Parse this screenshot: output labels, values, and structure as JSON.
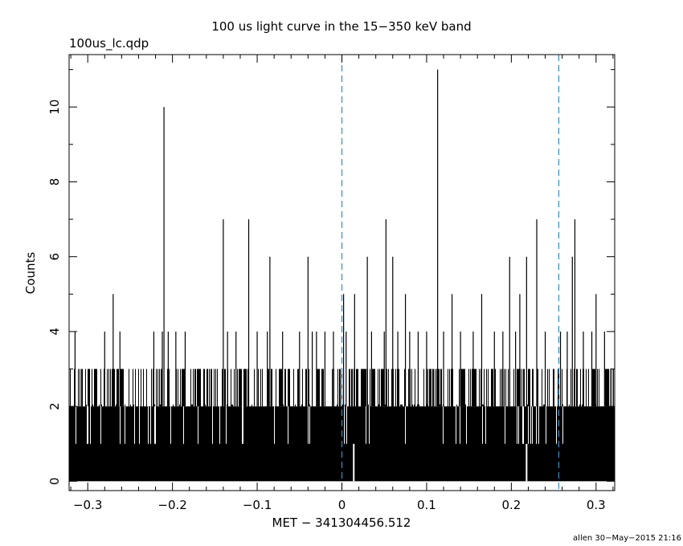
{
  "chart_data": {
    "type": "bar",
    "title": "100 us light curve in the 15−350 keV band",
    "subtitle": "100us_lc.qdp",
    "xlabel": "MET − 341304456.512",
    "ylabel": "Counts",
    "footer": "allen 30−May−2015 21:16",
    "xlim": [
      -0.322,
      0.322
    ],
    "ylim": [
      -0.25,
      11.4
    ],
    "xticks": [
      -0.3,
      -0.2,
      -0.1,
      0,
      0.1,
      0.2,
      0.3
    ],
    "xtick_labels": [
      "−0.3",
      "−0.2",
      "−0.1",
      "0",
      "0.1",
      "0.2",
      "0.3"
    ],
    "yticks": [
      0,
      2,
      4,
      6,
      8,
      10
    ],
    "ytick_labels": [
      "0",
      "2",
      "4",
      "6",
      "8",
      "10"
    ],
    "bin_width": 0.0001,
    "baseline_counts": 2,
    "reference_lines": [
      {
        "x": 0,
        "color": "#2a8fd0",
        "style": "dashed"
      },
      {
        "x": 0.256,
        "color": "#2a8fd0",
        "style": "dashed"
      }
    ],
    "peaks": [
      {
        "x": -0.315,
        "y": 4
      },
      {
        "x": -0.28,
        "y": 4
      },
      {
        "x": -0.27,
        "y": 5
      },
      {
        "x": -0.262,
        "y": 4
      },
      {
        "x": -0.222,
        "y": 4
      },
      {
        "x": -0.212,
        "y": 4
      },
      {
        "x": -0.21,
        "y": 10
      },
      {
        "x": -0.205,
        "y": 4
      },
      {
        "x": -0.196,
        "y": 4
      },
      {
        "x": -0.185,
        "y": 4
      },
      {
        "x": -0.14,
        "y": 7
      },
      {
        "x": -0.135,
        "y": 4
      },
      {
        "x": -0.125,
        "y": 4
      },
      {
        "x": -0.11,
        "y": 7
      },
      {
        "x": -0.1,
        "y": 4
      },
      {
        "x": -0.088,
        "y": 4
      },
      {
        "x": -0.085,
        "y": 6
      },
      {
        "x": -0.07,
        "y": 4
      },
      {
        "x": -0.05,
        "y": 4
      },
      {
        "x": -0.04,
        "y": 6
      },
      {
        "x": -0.035,
        "y": 4
      },
      {
        "x": -0.03,
        "y": 4
      },
      {
        "x": -0.02,
        "y": 4
      },
      {
        "x": -0.01,
        "y": 4
      },
      {
        "x": 0.002,
        "y": 5
      },
      {
        "x": 0.005,
        "y": 4
      },
      {
        "x": 0.015,
        "y": 5
      },
      {
        "x": 0.03,
        "y": 6
      },
      {
        "x": 0.035,
        "y": 4
      },
      {
        "x": 0.05,
        "y": 4
      },
      {
        "x": 0.052,
        "y": 7
      },
      {
        "x": 0.06,
        "y": 6
      },
      {
        "x": 0.066,
        "y": 4
      },
      {
        "x": 0.075,
        "y": 5
      },
      {
        "x": 0.08,
        "y": 4
      },
      {
        "x": 0.09,
        "y": 4
      },
      {
        "x": 0.1,
        "y": 4
      },
      {
        "x": 0.113,
        "y": 11
      },
      {
        "x": 0.12,
        "y": 4
      },
      {
        "x": 0.13,
        "y": 5
      },
      {
        "x": 0.14,
        "y": 4
      },
      {
        "x": 0.155,
        "y": 4
      },
      {
        "x": 0.165,
        "y": 5
      },
      {
        "x": 0.18,
        "y": 4
      },
      {
        "x": 0.19,
        "y": 4
      },
      {
        "x": 0.198,
        "y": 6
      },
      {
        "x": 0.205,
        "y": 4
      },
      {
        "x": 0.21,
        "y": 5
      },
      {
        "x": 0.218,
        "y": 6
      },
      {
        "x": 0.23,
        "y": 7
      },
      {
        "x": 0.24,
        "y": 4
      },
      {
        "x": 0.258,
        "y": 4
      },
      {
        "x": 0.266,
        "y": 4
      },
      {
        "x": 0.272,
        "y": 6
      },
      {
        "x": 0.275,
        "y": 7
      },
      {
        "x": 0.285,
        "y": 4
      },
      {
        "x": 0.295,
        "y": 4
      },
      {
        "x": 0.3,
        "y": 5
      },
      {
        "x": 0.31,
        "y": 4
      }
    ],
    "zero_gaps": [
      0.014,
      0.218
    ],
    "grid": false,
    "legend": "none"
  }
}
